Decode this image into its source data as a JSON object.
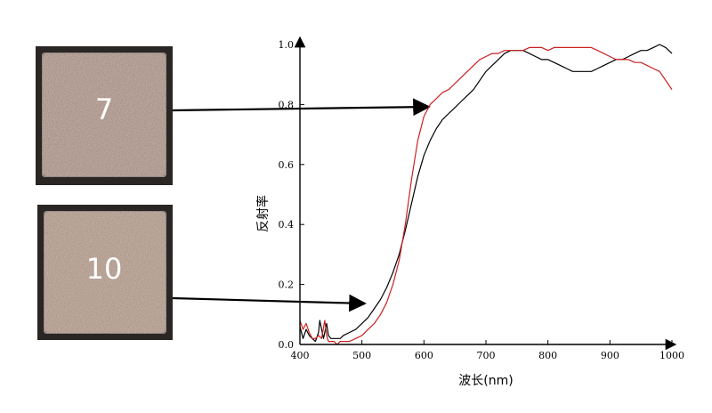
{
  "samples": [
    {
      "label": "7",
      "color": "#9c7d6d",
      "points_to": "red"
    },
    {
      "label": "10",
      "color": "#a38570",
      "points_to": "black"
    }
  ],
  "chart_data": {
    "type": "line",
    "title": "",
    "xlabel": "波长(nm)",
    "ylabel": "反射率",
    "xlim": [
      400,
      1000
    ],
    "ylim": [
      0,
      1.0
    ],
    "xticks": [
      400,
      500,
      600,
      700,
      800,
      900,
      1000
    ],
    "yticks": [
      0.0,
      0.2,
      0.4,
      0.6,
      0.8,
      1.0
    ],
    "ytick_labels": [
      "0.0",
      "0.2",
      "0.4",
      "0.6",
      "0.8",
      "1.0"
    ],
    "grid": false,
    "series": [
      {
        "color": "#000000",
        "points": [
          [
            400,
            0.06
          ],
          [
            405,
            0.02
          ],
          [
            410,
            0.05
          ],
          [
            415,
            0.03
          ],
          [
            420,
            0.02
          ],
          [
            425,
            0.01
          ],
          [
            430,
            0.04
          ],
          [
            432,
            0.08
          ],
          [
            435,
            0.05
          ],
          [
            438,
            0.02
          ],
          [
            440,
            0.04
          ],
          [
            443,
            0.07
          ],
          [
            446,
            0.03
          ],
          [
            450,
            0.02
          ],
          [
            455,
            0.02
          ],
          [
            460,
            0.02
          ],
          [
            465,
            0.02
          ],
          [
            470,
            0.03
          ],
          [
            480,
            0.04
          ],
          [
            490,
            0.05
          ],
          [
            500,
            0.07
          ],
          [
            510,
            0.09
          ],
          [
            520,
            0.12
          ],
          [
            530,
            0.15
          ],
          [
            540,
            0.19
          ],
          [
            550,
            0.24
          ],
          [
            560,
            0.3
          ],
          [
            570,
            0.38
          ],
          [
            580,
            0.47
          ],
          [
            590,
            0.56
          ],
          [
            600,
            0.63
          ],
          [
            610,
            0.68
          ],
          [
            620,
            0.72
          ],
          [
            630,
            0.75
          ],
          [
            640,
            0.77
          ],
          [
            650,
            0.79
          ],
          [
            660,
            0.81
          ],
          [
            670,
            0.83
          ],
          [
            680,
            0.85
          ],
          [
            690,
            0.88
          ],
          [
            700,
            0.91
          ],
          [
            710,
            0.93
          ],
          [
            720,
            0.95
          ],
          [
            730,
            0.97
          ],
          [
            740,
            0.98
          ],
          [
            750,
            0.98
          ],
          [
            760,
            0.98
          ],
          [
            770,
            0.97
          ],
          [
            780,
            0.96
          ],
          [
            790,
            0.95
          ],
          [
            800,
            0.95
          ],
          [
            810,
            0.94
          ],
          [
            820,
            0.93
          ],
          [
            830,
            0.92
          ],
          [
            840,
            0.91
          ],
          [
            850,
            0.91
          ],
          [
            860,
            0.91
          ],
          [
            870,
            0.91
          ],
          [
            880,
            0.92
          ],
          [
            890,
            0.93
          ],
          [
            900,
            0.94
          ],
          [
            910,
            0.95
          ],
          [
            920,
            0.95
          ],
          [
            930,
            0.96
          ],
          [
            940,
            0.97
          ],
          [
            950,
            0.98
          ],
          [
            960,
            0.98
          ],
          [
            970,
            0.99
          ],
          [
            980,
            1.0
          ],
          [
            990,
            0.99
          ],
          [
            1000,
            0.97
          ]
        ]
      },
      {
        "color": "#cc2020",
        "points": [
          [
            400,
            0.08
          ],
          [
            405,
            0.05
          ],
          [
            410,
            0.07
          ],
          [
            415,
            0.04
          ],
          [
            420,
            0.02
          ],
          [
            425,
            0.02
          ],
          [
            430,
            0.03
          ],
          [
            435,
            0.02
          ],
          [
            440,
            0.08
          ],
          [
            443,
            0.03
          ],
          [
            446,
            0.01
          ],
          [
            450,
            0.01
          ],
          [
            455,
            0.01
          ],
          [
            460,
            0.0
          ],
          [
            465,
            0.01
          ],
          [
            470,
            0.01
          ],
          [
            480,
            0.01
          ],
          [
            490,
            0.02
          ],
          [
            500,
            0.03
          ],
          [
            510,
            0.05
          ],
          [
            520,
            0.07
          ],
          [
            530,
            0.1
          ],
          [
            540,
            0.14
          ],
          [
            550,
            0.2
          ],
          [
            560,
            0.28
          ],
          [
            570,
            0.4
          ],
          [
            580,
            0.55
          ],
          [
            590,
            0.68
          ],
          [
            600,
            0.76
          ],
          [
            610,
            0.8
          ],
          [
            620,
            0.82
          ],
          [
            630,
            0.84
          ],
          [
            640,
            0.85
          ],
          [
            650,
            0.87
          ],
          [
            660,
            0.89
          ],
          [
            670,
            0.91
          ],
          [
            680,
            0.93
          ],
          [
            690,
            0.95
          ],
          [
            700,
            0.96
          ],
          [
            710,
            0.97
          ],
          [
            720,
            0.97
          ],
          [
            730,
            0.98
          ],
          [
            740,
            0.98
          ],
          [
            750,
            0.98
          ],
          [
            760,
            0.98
          ],
          [
            770,
            0.99
          ],
          [
            780,
            0.99
          ],
          [
            790,
            0.99
          ],
          [
            800,
            0.98
          ],
          [
            810,
            0.99
          ],
          [
            820,
            0.99
          ],
          [
            830,
            0.99
          ],
          [
            840,
            0.99
          ],
          [
            850,
            0.99
          ],
          [
            860,
            0.99
          ],
          [
            870,
            0.99
          ],
          [
            880,
            0.98
          ],
          [
            890,
            0.97
          ],
          [
            900,
            0.96
          ],
          [
            910,
            0.95
          ],
          [
            920,
            0.95
          ],
          [
            930,
            0.95
          ],
          [
            940,
            0.94
          ],
          [
            950,
            0.94
          ],
          [
            960,
            0.93
          ],
          [
            970,
            0.92
          ],
          [
            980,
            0.91
          ],
          [
            990,
            0.88
          ],
          [
            1000,
            0.85
          ]
        ]
      }
    ]
  }
}
